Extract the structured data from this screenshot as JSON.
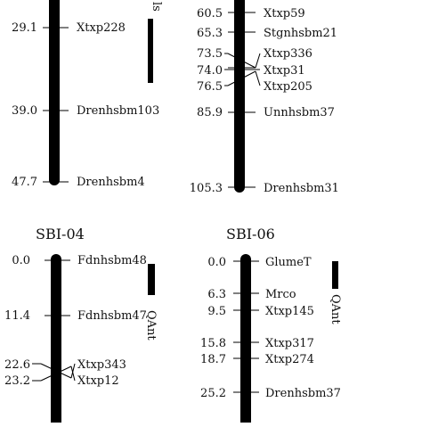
{
  "panels": [
    {
      "id": "top-left",
      "title": "",
      "loci": [
        {
          "pos": "29.1",
          "marker": "Xtxp228"
        },
        {
          "pos": "39.0",
          "marker": "Drenhsbm103"
        },
        {
          "pos": "47.7",
          "marker": "Drenhsbm4"
        }
      ],
      "qtl_label": "ls"
    },
    {
      "id": "top-right",
      "title": "",
      "loci": [
        {
          "pos": "60.5",
          "marker": "Xtxp59"
        },
        {
          "pos": "65.3",
          "marker": "Stgnhsbm21"
        },
        {
          "pos": "73.5",
          "marker": "Xtxp336"
        },
        {
          "pos": "74.0",
          "marker": "Xtxp31"
        },
        {
          "pos": "76.5",
          "marker": "Xtxp205"
        },
        {
          "pos": "85.9",
          "marker": "Unnhsbm37"
        },
        {
          "pos": "105.3",
          "marker": "Drenhsbm31"
        }
      ],
      "qtl_label": ""
    },
    {
      "id": "sbi-04",
      "title": "SBI-04",
      "loci": [
        {
          "pos": "0.0",
          "marker": "Fdnhsbm48"
        },
        {
          "pos": "11.4",
          "marker": "Fdnhsbm47"
        },
        {
          "pos": "22.6",
          "marker": "Xtxp343"
        },
        {
          "pos": "23.2",
          "marker": "Xtxp12"
        }
      ],
      "qtl_label": "QAnt"
    },
    {
      "id": "sbi-06",
      "title": "SBI-06",
      "loci": [
        {
          "pos": "0.0",
          "marker": "GlumeT"
        },
        {
          "pos": "6.3",
          "marker": "Mrco"
        },
        {
          "pos": "9.5",
          "marker": "Xtxp145"
        },
        {
          "pos": "15.8",
          "marker": "Xtxp317"
        },
        {
          "pos": "18.7",
          "marker": "Xtxp274"
        },
        {
          "pos": "25.2",
          "marker": "Drenhsbm37"
        }
      ],
      "qtl_label": "QAnt"
    }
  ]
}
